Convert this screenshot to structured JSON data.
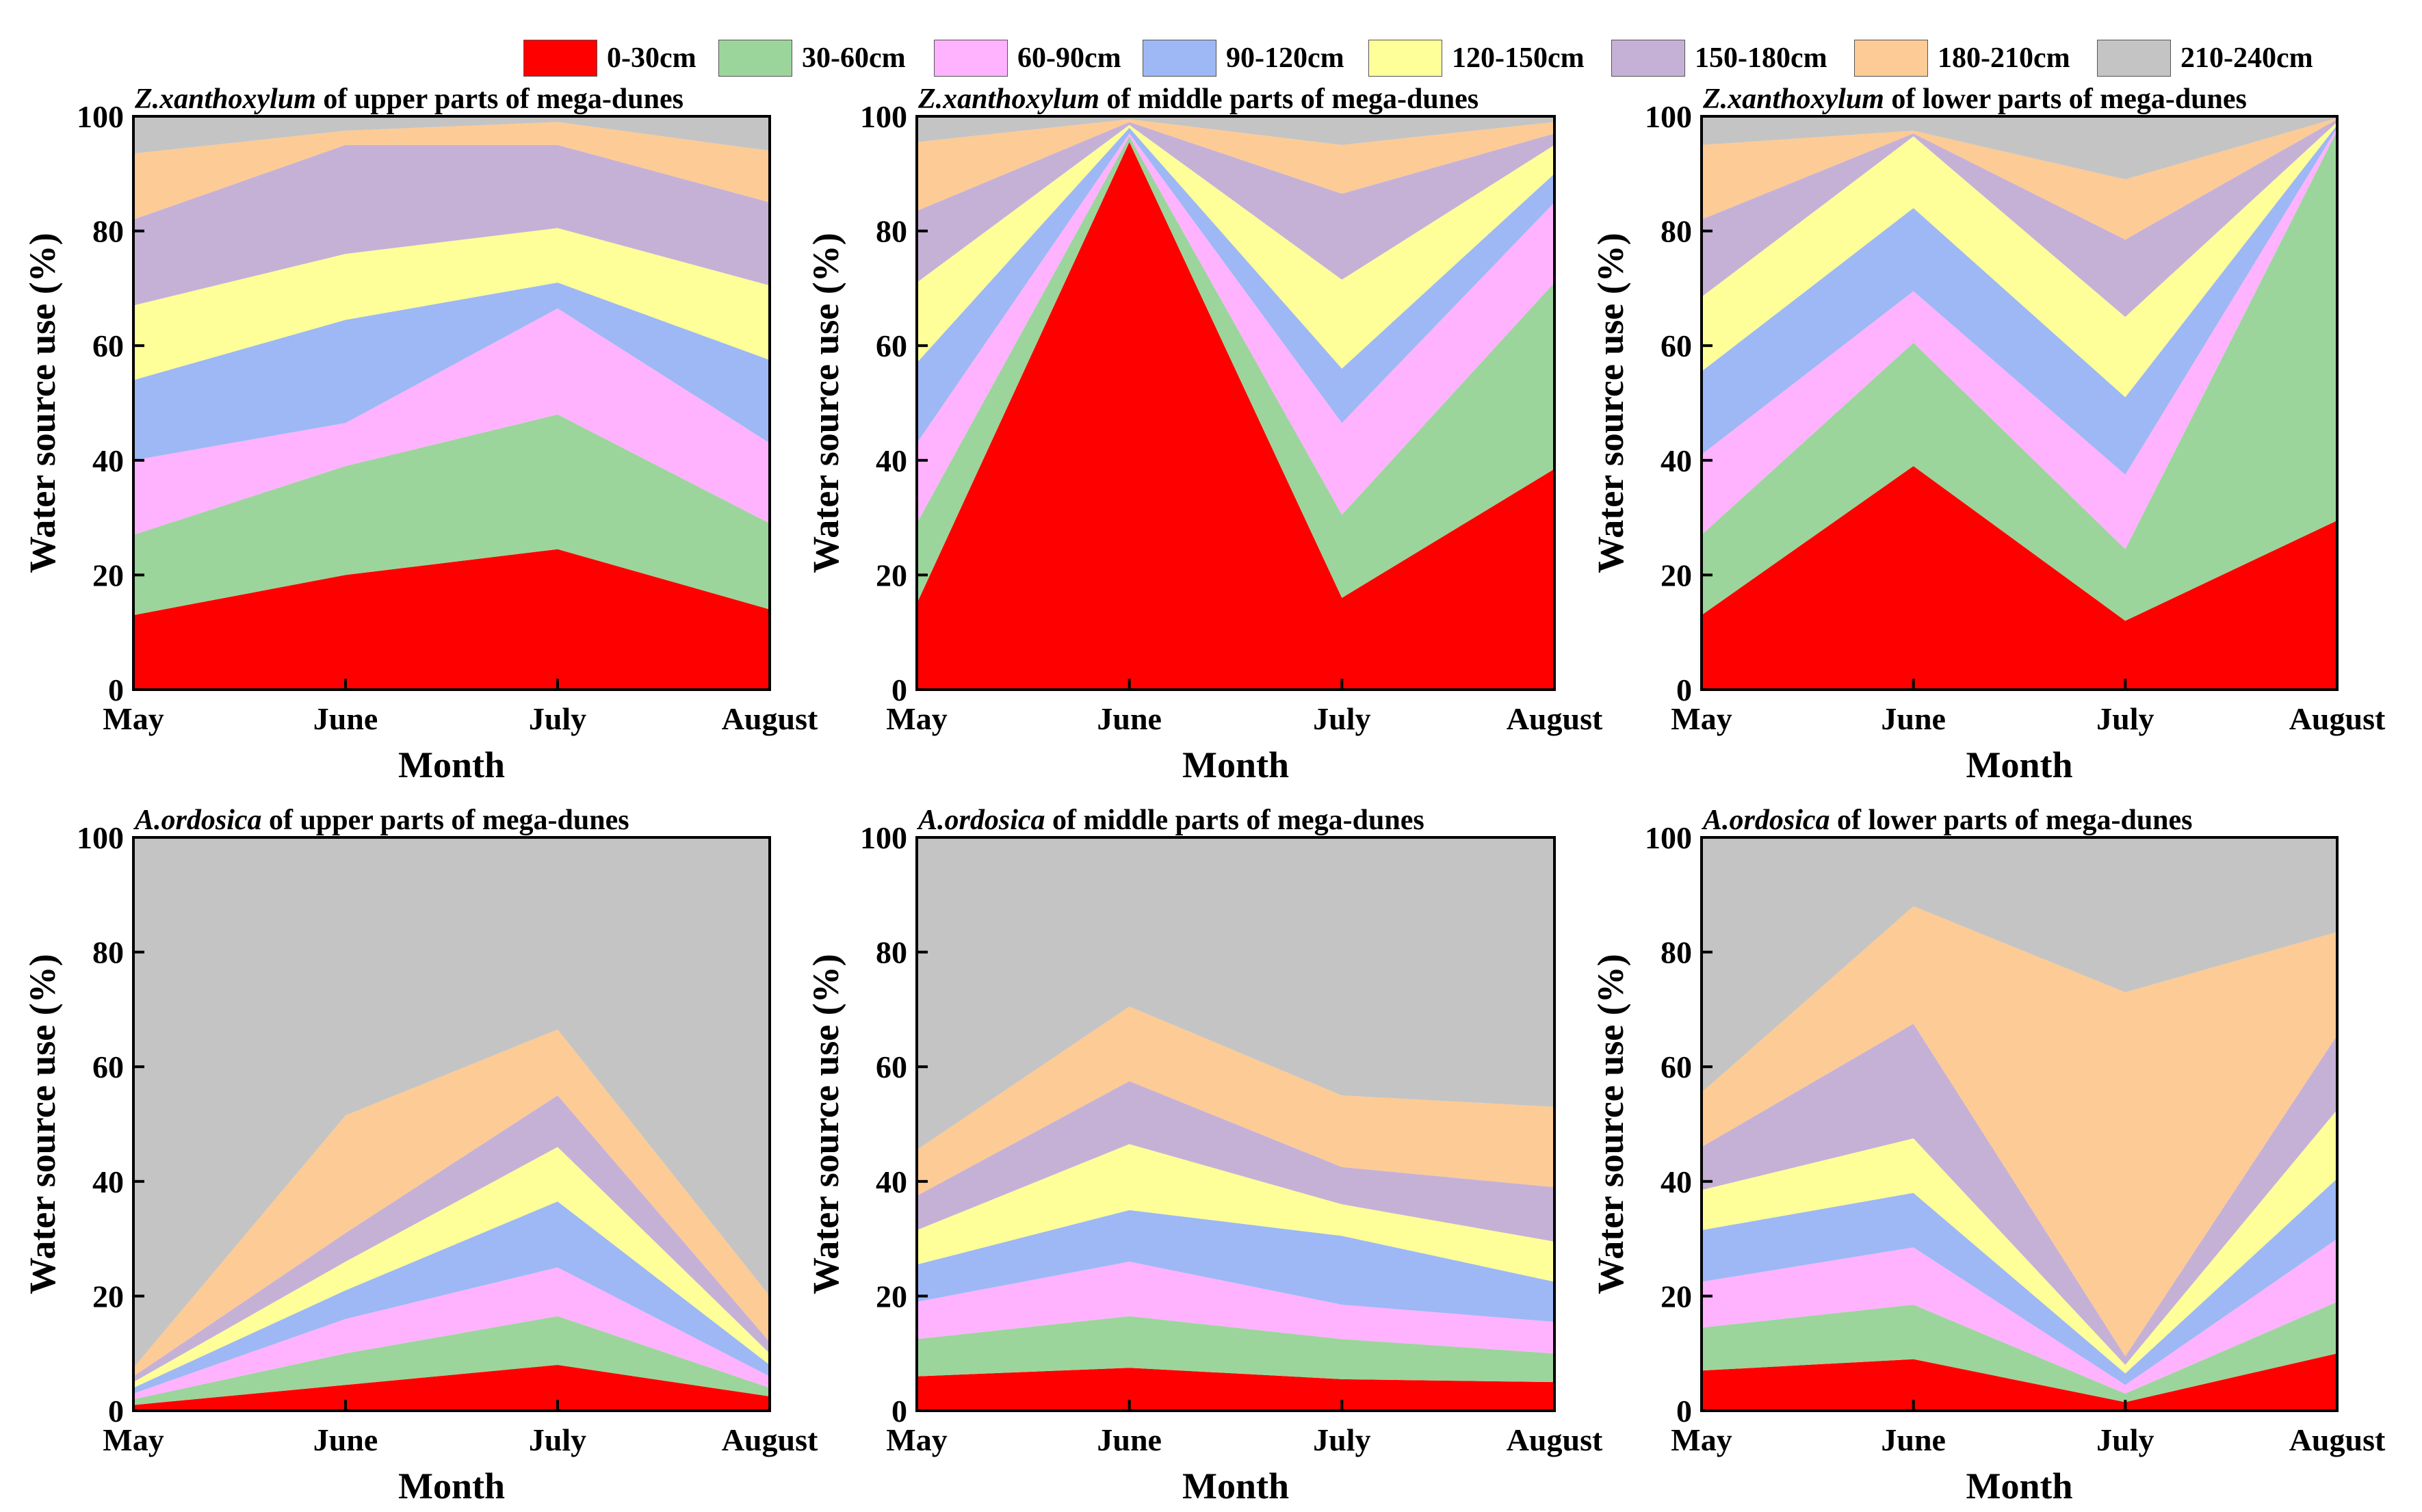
{
  "legend": [
    {
      "label": "0-30cm",
      "color": "#ff0000"
    },
    {
      "label": "30-60cm",
      "color": "#9bd59b"
    },
    {
      "label": "60-90cm",
      "color": "#ffb3ff"
    },
    {
      "label": "90-120cm",
      "color": "#9db8f5"
    },
    {
      "label": "120-150cm",
      "color": "#ffff99"
    },
    {
      "label": "150-180cm",
      "color": "#c6b1d6"
    },
    {
      "label": "180-210cm",
      "color": "#fdcb95"
    },
    {
      "label": "210-240cm",
      "color": "#c4c4c4"
    }
  ],
  "chart_data": [
    {
      "type": "area",
      "stacked": true,
      "title": {
        "species": "Z.xanthoxylum",
        "rest": " of upper parts of mega-dunes"
      },
      "xlabel": "Month",
      "ylabel": "Water source use (%)",
      "categories": [
        "May",
        "June",
        "July",
        "August"
      ],
      "ylim": [
        0,
        100
      ],
      "yticks": [
        0,
        20,
        40,
        60,
        80,
        100
      ],
      "cumulative_top": [
        [
          13,
          20,
          24.5,
          14
        ],
        [
          27,
          39,
          48,
          29
        ],
        [
          40,
          46.5,
          66.5,
          43
        ],
        [
          54,
          64.5,
          71,
          57.5
        ],
        [
          67,
          76,
          80.5,
          70.5
        ],
        [
          82,
          95,
          95,
          85
        ],
        [
          93.5,
          97.5,
          99,
          94
        ],
        [
          100,
          100,
          100,
          100
        ]
      ]
    },
    {
      "type": "area",
      "stacked": true,
      "title": {
        "species": "Z.xanthoxylum",
        "rest": " of middle parts of mega-dunes"
      },
      "xlabel": "Month",
      "ylabel": "Water source use (%)",
      "categories": [
        "May",
        "June",
        "July",
        "August"
      ],
      "ylim": [
        0,
        100
      ],
      "yticks": [
        0,
        20,
        40,
        60,
        80,
        100
      ],
      "cumulative_top": [
        [
          15,
          95.5,
          16,
          38.5
        ],
        [
          29,
          96.5,
          30.5,
          71
        ],
        [
          43,
          97,
          46.5,
          85
        ],
        [
          57,
          98,
          56,
          90
        ],
        [
          71,
          98.5,
          71.5,
          95
        ],
        [
          83.5,
          99,
          86.5,
          97
        ],
        [
          95.5,
          99.5,
          95,
          99
        ],
        [
          100,
          100,
          100,
          100
        ]
      ]
    },
    {
      "type": "area",
      "stacked": true,
      "title": {
        "species": "Z.xanthoxylum",
        "rest": " of lower parts of mega-dunes"
      },
      "xlabel": "Month",
      "ylabel": "Water source use (%)",
      "categories": [
        "May",
        "June",
        "July",
        "August"
      ],
      "ylim": [
        0,
        100
      ],
      "yticks": [
        0,
        20,
        40,
        60,
        80,
        100
      ],
      "cumulative_top": [
        [
          13,
          39,
          12,
          29.5
        ],
        [
          27,
          60.5,
          24.5,
          97.5
        ],
        [
          41,
          69.5,
          37.5,
          98
        ],
        [
          55.5,
          84,
          51,
          98.5
        ],
        [
          68.5,
          96.5,
          65,
          99
        ],
        [
          82,
          97,
          78.5,
          99.5
        ],
        [
          95,
          97.5,
          89,
          99.7
        ],
        [
          100,
          100,
          100,
          100
        ]
      ]
    },
    {
      "type": "area",
      "stacked": true,
      "title": {
        "species": "A.ordosica",
        "rest": " of upper parts of mega-dunes"
      },
      "xlabel": "Month",
      "ylabel": "Water source use (%)",
      "categories": [
        "May",
        "June",
        "July",
        "August"
      ],
      "ylim": [
        0,
        100
      ],
      "yticks": [
        0,
        20,
        40,
        60,
        80,
        100
      ],
      "cumulative_top": [
        [
          1,
          4.5,
          8,
          2.5
        ],
        [
          2,
          10,
          16.5,
          4
        ],
        [
          3,
          16,
          25,
          6
        ],
        [
          4,
          21,
          36.5,
          8
        ],
        [
          5,
          26,
          46,
          10
        ],
        [
          6,
          31,
          55,
          12
        ],
        [
          7.5,
          51.5,
          66.5,
          20
        ],
        [
          100,
          100,
          100,
          100
        ]
      ]
    },
    {
      "type": "area",
      "stacked": true,
      "title": {
        "species": "A.ordosica",
        "rest": " of middle parts of mega-dunes"
      },
      "xlabel": "Month",
      "ylabel": "Water source use (%)",
      "categories": [
        "May",
        "June",
        "July",
        "August"
      ],
      "ylim": [
        0,
        100
      ],
      "yticks": [
        0,
        20,
        40,
        60,
        80,
        100
      ],
      "cumulative_top": [
        [
          6,
          7.5,
          5.5,
          5
        ],
        [
          12.5,
          16.5,
          12.5,
          10
        ],
        [
          19,
          26,
          18.5,
          15.5
        ],
        [
          25.5,
          35,
          30.5,
          22.5
        ],
        [
          31.5,
          46.5,
          36,
          29.5
        ],
        [
          37.5,
          57.5,
          42.5,
          39
        ],
        [
          45.5,
          70.5,
          55,
          53
        ],
        [
          100,
          100,
          100,
          100
        ]
      ]
    },
    {
      "type": "area",
      "stacked": true,
      "title": {
        "species": "A.ordosica",
        "rest": " of lower parts of mega-dunes"
      },
      "xlabel": "Month",
      "ylabel": "Water source use (%)",
      "categories": [
        "May",
        "June",
        "July",
        "August"
      ],
      "ylim": [
        0,
        100
      ],
      "yticks": [
        0,
        20,
        40,
        60,
        80,
        100
      ],
      "cumulative_top": [
        [
          7,
          9,
          1.5,
          10
        ],
        [
          14.5,
          18.5,
          3,
          19
        ],
        [
          22.5,
          28.5,
          4.5,
          30
        ],
        [
          31.5,
          38,
          6.5,
          40.5
        ],
        [
          38.5,
          47.5,
          8,
          52.5
        ],
        [
          46,
          67.5,
          9.5,
          65.5
        ],
        [
          55.5,
          88,
          73,
          83.5
        ],
        [
          100,
          100,
          100,
          100
        ]
      ]
    }
  ]
}
